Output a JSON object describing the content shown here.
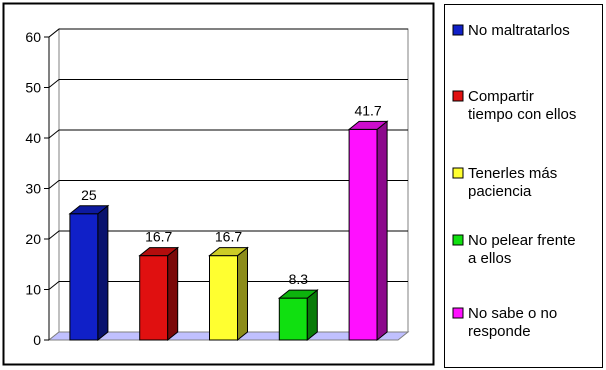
{
  "chart_data": {
    "type": "bar",
    "title": "",
    "xlabel": "",
    "ylabel": "",
    "ylim": [
      0,
      60
    ],
    "yticks": [
      0,
      10,
      20,
      30,
      40,
      50,
      60
    ],
    "grid": true,
    "legend_position": "right",
    "three_d": true,
    "categories": [
      "No maltratarlos",
      "Compartir tiempo con ellos",
      "Tenerles más paciencia",
      "No pelear frente a ellos",
      "No sabe o no responde"
    ],
    "values": [
      25,
      16.7,
      16.7,
      8.3,
      41.7
    ],
    "value_labels": [
      "25",
      "16.7",
      "16.7",
      "8.3",
      "41.7"
    ],
    "colors": [
      "#1020c8",
      "#e01010",
      "#ffff30",
      "#10e010",
      "#ff10ff"
    ],
    "legend": [
      {
        "lines": [
          "No maltratarlos"
        ],
        "color": "#1020c8",
        "icon": "blue-legend-square-icon"
      },
      {
        "lines": [
          "Compartir",
          "tiempo con ellos"
        ],
        "color": "#e01010",
        "icon": "red-legend-square-icon"
      },
      {
        "lines": [
          "Tenerles más",
          "paciencia"
        ],
        "color": "#ffff30",
        "icon": "yellow-legend-square-icon"
      },
      {
        "lines": [
          "No pelear frente",
          "a ellos"
        ],
        "color": "#10e010",
        "icon": "green-legend-square-icon"
      },
      {
        "lines": [
          "No sabe o no",
          "responde"
        ],
        "color": "#ff10ff",
        "icon": "magenta-legend-square-icon"
      }
    ]
  }
}
